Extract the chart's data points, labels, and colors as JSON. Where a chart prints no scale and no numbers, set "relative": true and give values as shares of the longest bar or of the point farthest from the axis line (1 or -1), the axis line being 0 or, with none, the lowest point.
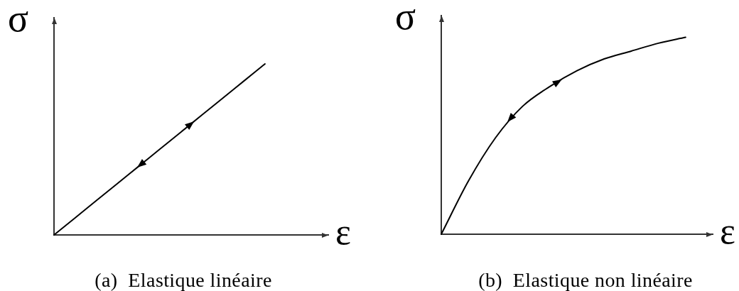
{
  "chart_data": [
    {
      "type": "line",
      "relative": true,
      "xlabel": "ε",
      "ylabel": "σ",
      "categories": [
        null,
        null,
        null,
        null,
        null,
        null,
        null,
        null,
        null,
        null,
        null,
        null,
        null,
        null
      ],
      "values": [
        0,
        0.1,
        0.2,
        0.3,
        0.4,
        0.5,
        0.6,
        0.7,
        0.8,
        0.9,
        1,
        null,
        null,
        null
      ],
      "color": "#000000",
      "annotations": [
        "(a)  Elastique linéaire"
      ]
    },
    {
      "type": "line",
      "relative": true,
      "xlabel": "ε",
      "ylabel": "σ",
      "categories": [
        null,
        null,
        null,
        null,
        null,
        null,
        null,
        null,
        null,
        null,
        null
      ],
      "values": [
        0,
        0.27,
        0.49,
        0.65,
        0.75,
        0.83,
        0.89,
        0.93,
        0.97,
        1,
        null
      ],
      "color": "#000000",
      "annotations": [
        "(b)  Elastique non linéaire"
      ]
    }
  ]
}
